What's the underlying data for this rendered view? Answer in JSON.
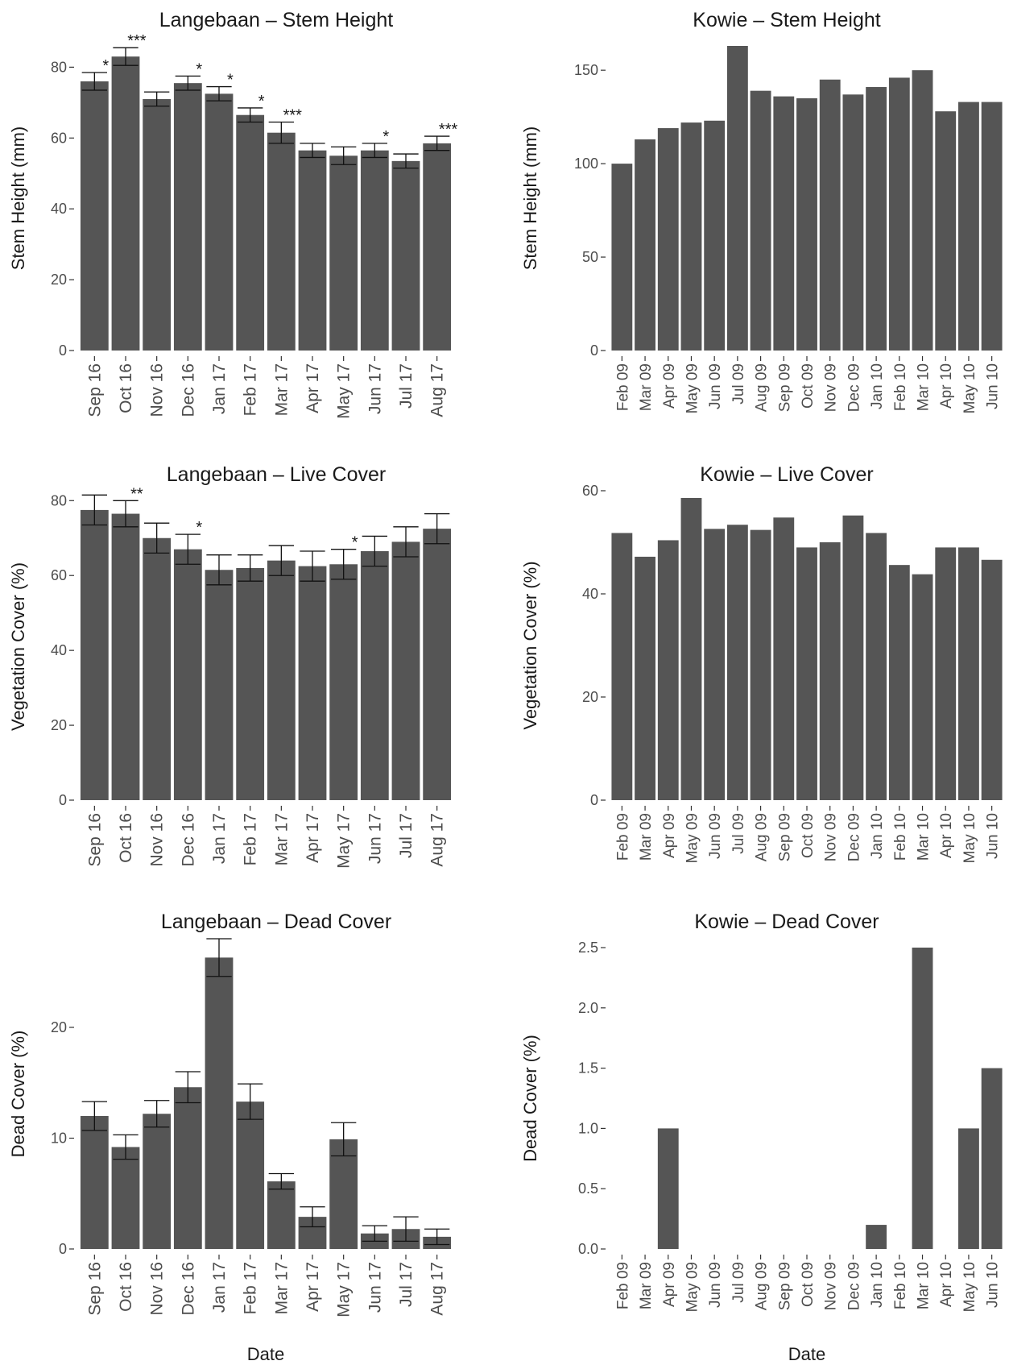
{
  "chart_data": [
    {
      "id": "lang-stem",
      "type": "bar",
      "title": "Langebaan – Stem Height",
      "ylabel": "Stem Height (mm)",
      "xlabel": "",
      "ylim": [
        0,
        86
      ],
      "yticks": [
        0,
        20,
        40,
        60,
        80
      ],
      "categories": [
        "Sep 16",
        "Oct 16",
        "Nov 16",
        "Dec 16",
        "Jan 17",
        "Feb 17",
        "Mar 17",
        "Apr 17",
        "May 17",
        "Jun 17",
        "Jul 17",
        "Aug 17"
      ],
      "values": [
        76,
        83,
        71,
        75.5,
        72.5,
        66.5,
        61.5,
        56.5,
        55,
        56.5,
        53.5,
        58.5
      ],
      "errors": [
        2.5,
        2.5,
        2.0,
        2.0,
        2.0,
        2.0,
        3.0,
        2.0,
        2.5,
        2.0,
        2.0,
        2.0
      ],
      "significance": [
        "*",
        "***",
        "",
        "*",
        "*",
        "*",
        "***",
        "",
        "",
        "*",
        "",
        "***"
      ],
      "bar_color": "#555555"
    },
    {
      "id": "kowie-stem",
      "type": "bar",
      "title": "Kowie – Stem Height",
      "ylabel": "Stem Height (mm)",
      "xlabel": "",
      "ylim": [
        0,
        163
      ],
      "yticks": [
        0,
        50,
        100,
        150
      ],
      "categories": [
        "Feb 09",
        "Mar 09",
        "Apr 09",
        "May 09",
        "Jun 09",
        "Jul 09",
        "Aug 09",
        "Sep 09",
        "Oct 09",
        "Nov 09",
        "Dec 09",
        "Jan 10",
        "Feb 10",
        "Mar 10",
        "Apr 10",
        "May 10",
        "Jun 10"
      ],
      "values": [
        100,
        113,
        119,
        122,
        123,
        163,
        139,
        136,
        135,
        145,
        137,
        141,
        146,
        150,
        128,
        133,
        133
      ],
      "bar_color": "#555555"
    },
    {
      "id": "lang-live",
      "type": "bar",
      "title": "Langebaan – Live Cover",
      "ylabel": "Vegetation Cover (%)",
      "xlabel": "",
      "ylim": [
        0,
        82
      ],
      "yticks": [
        0,
        20,
        40,
        60,
        80
      ],
      "categories": [
        "Sep 16",
        "Oct 16",
        "Nov 16",
        "Dec 16",
        "Jan 17",
        "Feb 17",
        "Mar 17",
        "Apr 17",
        "May 17",
        "Jun 17",
        "Jul 17",
        "Aug 17"
      ],
      "values": [
        77.5,
        76.5,
        70,
        67,
        61.5,
        62,
        64,
        62.5,
        63,
        66.5,
        69,
        72.5
      ],
      "errors": [
        4.0,
        3.5,
        4.0,
        4.0,
        4.0,
        3.5,
        4.0,
        4.0,
        4.0,
        4.0,
        4.0,
        4.0
      ],
      "significance": [
        "",
        "**",
        "",
        "*",
        "",
        "",
        "",
        "",
        "*",
        "",
        "",
        ""
      ],
      "bar_color": "#555555"
    },
    {
      "id": "kowie-live",
      "type": "bar",
      "title": "Kowie – Live Cover",
      "ylabel": "Vegetation Cover (%)",
      "xlabel": "",
      "ylim": [
        0,
        60
      ],
      "yticks": [
        0,
        20,
        40,
        60
      ],
      "categories": [
        "Feb 09",
        "Mar 09",
        "Apr 09",
        "May 09",
        "Jun 09",
        "Jul 09",
        "Aug 09",
        "Sep 09",
        "Oct 09",
        "Nov 09",
        "Dec 09",
        "Jan 10",
        "Feb 10",
        "Mar 10",
        "Apr 10",
        "May 10",
        "Jun 10"
      ],
      "values": [
        51.8,
        47.2,
        50.4,
        58.6,
        52.6,
        53.4,
        52.4,
        54.8,
        49,
        50,
        55.2,
        51.8,
        45.6,
        43.8,
        49,
        49,
        46.6
      ],
      "bar_color": "#555555"
    },
    {
      "id": "lang-dead",
      "type": "bar",
      "title": "Langebaan – Dead Cover",
      "ylabel": "Dead Cover (%)",
      "xlabel": "Date",
      "ylim": [
        0,
        28
      ],
      "yticks": [
        0,
        10,
        20
      ],
      "categories": [
        "Sep 16",
        "Oct 16",
        "Nov 16",
        "Dec 16",
        "Jan 17",
        "Feb 17",
        "Mar 17",
        "Apr 17",
        "May 17",
        "Jun 17",
        "Jul 17",
        "Aug 17"
      ],
      "values": [
        12,
        9.2,
        12.2,
        14.6,
        26.3,
        13.3,
        6.1,
        2.9,
        9.9,
        1.4,
        1.8,
        1.1
      ],
      "errors": [
        1.3,
        1.1,
        1.2,
        1.4,
        1.7,
        1.6,
        0.7,
        0.9,
        1.5,
        0.7,
        1.1,
        0.7
      ],
      "bar_color": "#555555"
    },
    {
      "id": "kowie-dead",
      "type": "bar",
      "title": "Kowie – Dead Cover",
      "ylabel": "Dead Cover (%)",
      "xlabel": "Date",
      "ylim": [
        0,
        2.5
      ],
      "yticks": [
        0.0,
        0.5,
        1.0,
        1.5,
        2.0,
        2.5
      ],
      "ytick_labels": [
        "0.0",
        "0.5",
        "1.0",
        "1.5",
        "2.0",
        "2.5"
      ],
      "categories": [
        "Feb 09",
        "Mar 09",
        "Apr 09",
        "May 09",
        "Jun 09",
        "Jul 09",
        "Aug 09",
        "Sep 09",
        "Oct 09",
        "Nov 09",
        "Dec 09",
        "Jan 10",
        "Feb 10",
        "Mar 10",
        "Apr 10",
        "May 10",
        "Jun 10"
      ],
      "values": [
        0,
        0,
        1.0,
        0,
        0,
        0,
        0,
        0,
        0,
        0,
        0,
        0.2,
        0,
        2.5,
        0,
        1.0,
        1.5
      ],
      "bar_color": "#555555"
    }
  ]
}
